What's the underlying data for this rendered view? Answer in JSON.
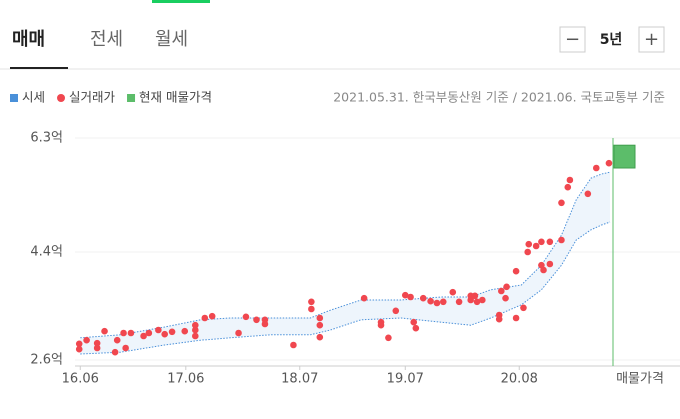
{
  "tabs": [
    "매매",
    "전세",
    "월세"
  ],
  "period": {
    "minus": "−",
    "label": "5년",
    "plus": "+"
  },
  "source": "2021.05.31. 한국부동산원 기준 / 2021.06. 국토교통부 기준",
  "chart_data": {
    "type": "scatter",
    "xlim": [
      2016.37,
      2021.44
    ],
    "xticks": [
      {
        "value": 2016.42,
        "label": "16.06"
      },
      {
        "value": 2017.42,
        "label": "17.06"
      },
      {
        "value": 2018.5,
        "label": "18.07"
      },
      {
        "value": 2019.5,
        "label": "19.07"
      },
      {
        "value": 2020.58,
        "label": "20.08"
      }
    ],
    "ylim": [
      2.5,
      6.4
    ],
    "yticks": [
      {
        "value": 2.6,
        "label": "2.6억"
      },
      {
        "value": 4.4,
        "label": "4.4억"
      },
      {
        "value": 6.3,
        "label": "6.3억"
      }
    ],
    "grid": true,
    "series": [
      {
        "name": "시세",
        "color": "#4a90d9",
        "x": [
          2016.42,
          2016.8,
          2017.22,
          2017.56,
          2017.84,
          2018.22,
          2018.6,
          2018.79,
          2019.08,
          2019.46,
          2019.84,
          2020.12,
          2020.31,
          2020.6,
          2020.79,
          2020.98,
          2021.12,
          2021.26,
          2021.36,
          2021.44
        ],
        "high": [
          2.97,
          3.02,
          3.15,
          3.27,
          3.3,
          3.3,
          3.3,
          3.43,
          3.6,
          3.6,
          3.65,
          3.65,
          3.77,
          3.85,
          4.18,
          4.68,
          5.27,
          5.63,
          5.7,
          5.73
        ],
        "low": [
          2.7,
          2.73,
          2.85,
          2.93,
          2.97,
          3.02,
          3.02,
          3.1,
          3.27,
          3.3,
          3.23,
          3.18,
          3.3,
          3.52,
          3.77,
          4.18,
          4.6,
          4.77,
          4.85,
          4.9
        ]
      },
      {
        "name": "실거래가",
        "color": "#f0474f",
        "x": [
          2016.41,
          2016.41,
          2016.48,
          2016.58,
          2016.58,
          2016.65,
          2016.75,
          2016.77,
          2016.83,
          2016.85,
          2016.9,
          2017.02,
          2017.07,
          2017.16,
          2017.22,
          2017.29,
          2017.41,
          2017.51,
          2017.51,
          2017.51,
          2017.6,
          2017.67,
          2017.92,
          2017.99,
          2018.09,
          2018.17,
          2018.17,
          2018.44,
          2018.61,
          2018.61,
          2018.69,
          2018.69,
          2018.69,
          2019.11,
          2019.27,
          2019.27,
          2019.34,
          2019.41,
          2019.5,
          2019.55,
          2019.58,
          2019.6,
          2019.67,
          2019.74,
          2019.8,
          2019.86,
          2019.95,
          2020.01,
          2020.12,
          2020.12,
          2020.16,
          2020.18,
          2020.23,
          2020.39,
          2020.39,
          2020.41,
          2020.45,
          2020.46,
          2020.55,
          2020.55,
          2020.62,
          2020.66,
          2020.67,
          2020.74,
          2020.79,
          2020.79,
          2020.81,
          2020.87,
          2020.87,
          2020.98,
          2020.98,
          2021.04,
          2021.06,
          2021.23,
          2021.31,
          2021.43
        ],
        "values": [
          2.78,
          2.87,
          2.93,
          2.88,
          2.8,
          3.08,
          2.73,
          2.93,
          3.05,
          2.8,
          3.05,
          3.0,
          3.05,
          3.1,
          3.03,
          3.07,
          3.08,
          3.18,
          3.1,
          3.0,
          3.3,
          3.33,
          3.05,
          3.32,
          3.27,
          3.27,
          3.2,
          2.85,
          3.57,
          3.45,
          3.3,
          3.18,
          2.98,
          3.63,
          3.23,
          3.18,
          2.97,
          3.42,
          3.68,
          3.65,
          3.23,
          3.13,
          3.63,
          3.58,
          3.55,
          3.57,
          3.73,
          3.57,
          3.67,
          3.6,
          3.67,
          3.57,
          3.6,
          3.35,
          3.28,
          3.75,
          3.63,
          3.82,
          3.3,
          4.08,
          3.47,
          4.4,
          4.53,
          4.5,
          4.57,
          4.18,
          4.1,
          4.2,
          4.57,
          4.6,
          5.22,
          5.48,
          5.6,
          5.37,
          5.8,
          5.88
        ]
      },
      {
        "name": "현재 매물가격",
        "color": "#5cbd6a",
        "low": 5.8,
        "high": 6.18,
        "label": "매물가격"
      }
    ]
  }
}
